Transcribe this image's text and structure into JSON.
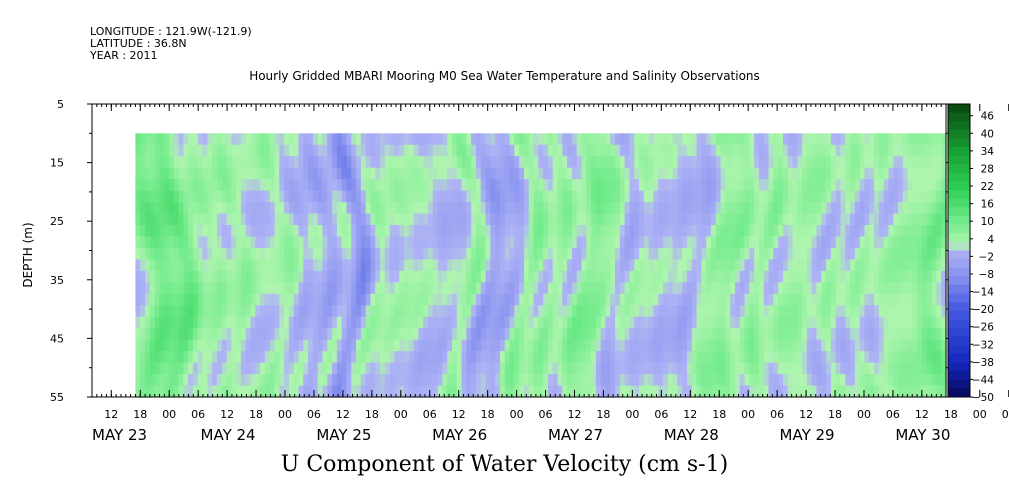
{
  "header": {
    "longitude": "LONGITUDE : 121.9W(-121.9)",
    "latitude": "LATITUDE : 36.8N",
    "year": "YEAR : 2011"
  },
  "title": "Hourly Gridded MBARI Mooring M0 Sea Water Temperature and Salinity Observations",
  "chart_data": {
    "type": "heatmap",
    "title": "Hourly Gridded MBARI Mooring M0 Sea Water Temperature and Salinity Observations",
    "xlabel": "",
    "ylabel": "DEPTH (m)",
    "variable_label": "U Component of Water Velocity (cm s-1)",
    "y_axis": {
      "ticks": [
        5,
        15,
        25,
        35,
        45,
        55
      ],
      "range": [
        5,
        55
      ],
      "inverted": true
    },
    "x_axis": {
      "hour_ticks": [
        "12",
        "18",
        "00",
        "06",
        "12",
        "18",
        "00",
        "06",
        "12",
        "18",
        "00",
        "06",
        "12",
        "18",
        "00",
        "06",
        "12",
        "18",
        "00",
        "06",
        "12",
        "18",
        "00",
        "06",
        "12",
        "18",
        "00",
        "06",
        "12",
        "18",
        "00",
        "06"
      ],
      "day_labels": [
        "MAY 23",
        "MAY 24",
        "MAY 25",
        "MAY 26",
        "MAY 27",
        "MAY 28",
        "MAY 29",
        "MAY 30"
      ],
      "range": [
        "2011-05-23T08:00",
        "2011-05-30T17:00"
      ]
    },
    "data_extent": {
      "time_start": "2011-05-23T17:00",
      "time_end": "2011-05-30T17:00",
      "depth_min": 10,
      "depth_max": 55
    },
    "colorbar": {
      "labels": [
        46,
        40,
        34,
        28,
        22,
        16,
        10,
        4,
        -2,
        -8,
        -14,
        -20,
        -26,
        -32,
        -38,
        -44,
        -50
      ],
      "range": [
        -50,
        50
      ]
    },
    "features": [
      {
        "start_hour": 13,
        "sign": 1,
        "amplitude": 14
      },
      {
        "start_hour": 24,
        "sign": -1,
        "amplitude": 8
      },
      {
        "start_hour": 32,
        "sign": 1,
        "amplitude": 18
      },
      {
        "start_hour": 48,
        "sign": -1,
        "amplitude": 9
      },
      {
        "start_hour": 56,
        "sign": 1,
        "amplitude": 16
      },
      {
        "start_hour": 66,
        "sign": -1,
        "amplitude": 12
      },
      {
        "start_hour": 76,
        "sign": 1,
        "amplitude": 14
      },
      {
        "start_hour": 88,
        "sign": -1,
        "amplitude": 10
      },
      {
        "start_hour": 96,
        "sign": 1,
        "amplitude": 12
      },
      {
        "start_hour": 104,
        "sign": -1,
        "amplitude": 13
      },
      {
        "start_hour": 113,
        "sign": 1,
        "amplitude": 17
      },
      {
        "start_hour": 124,
        "sign": -1,
        "amplitude": 15
      },
      {
        "start_hour": 134,
        "sign": 1,
        "amplitude": 13
      },
      {
        "start_hour": 146,
        "sign": -1,
        "amplitude": 16
      },
      {
        "start_hour": 156,
        "sign": 1,
        "amplitude": 14
      },
      {
        "start_hour": 170,
        "sign": -1,
        "amplitude": 18
      },
      {
        "start_hour": 182,
        "sign": 1,
        "amplitude": 14
      },
      {
        "start_hour": 194,
        "sign": -1,
        "amplitude": 12
      },
      {
        "start_hour": 202,
        "sign": 1,
        "amplitude": 13
      },
      {
        "start_hour": 214,
        "sign": -1,
        "amplitude": 10
      },
      {
        "start_hour": 222,
        "sign": 1,
        "amplitude": 14
      },
      {
        "start_hour": 232,
        "sign": -1,
        "amplitude": 14
      },
      {
        "start_hour": 240,
        "sign": 1,
        "amplitude": 12
      },
      {
        "start_hour": 250,
        "sign": -1,
        "amplitude": 11
      },
      {
        "start_hour": 262,
        "sign": 1,
        "amplitude": 16
      },
      {
        "start_hour": 274,
        "sign": -1,
        "amplitude": 18
      },
      {
        "start_hour": 284,
        "sign": 1,
        "amplitude": 14
      },
      {
        "start_hour": 294,
        "sign": -1,
        "amplitude": 16
      },
      {
        "start_hour": 306,
        "sign": 1,
        "amplitude": 15
      },
      {
        "start_hour": 320,
        "sign": -1,
        "amplitude": 10
      },
      {
        "start_hour": 330,
        "sign": 1,
        "amplitude": 16
      },
      {
        "start_hour": 342,
        "sign": -1,
        "amplitude": 14
      },
      {
        "start_hour": 352,
        "sign": 1,
        "amplitude": 18
      },
      {
        "start_hour": 362,
        "sign": -1,
        "amplitude": 10
      },
      {
        "start_hour": 370,
        "sign": 1,
        "amplitude": 15
      },
      {
        "start_hour": 382,
        "sign": -1,
        "amplitude": 12
      },
      {
        "start_hour": 394,
        "sign": 1,
        "amplitude": 12
      },
      {
        "start_hour": 404,
        "sign": -1,
        "amplitude": 11
      },
      {
        "start_hour": 414,
        "sign": 1,
        "amplitude": 12
      },
      {
        "start_hour": 424,
        "sign": -1,
        "amplitude": 15
      },
      {
        "start_hour": 432,
        "sign": 1,
        "amplitude": 14
      },
      {
        "start_hour": 442,
        "sign": -1,
        "amplitude": 12
      },
      {
        "start_hour": 456,
        "sign": 1,
        "amplitude": 13
      },
      {
        "start_hour": 464,
        "sign": -1,
        "amplitude": 9
      },
      {
        "start_hour": 474,
        "sign": 1,
        "amplitude": 14
      },
      {
        "start_hour": 486,
        "sign": -1,
        "amplitude": 12
      },
      {
        "start_hour": 496,
        "sign": 1,
        "amplitude": 15
      },
      {
        "start_hour": 510,
        "sign": -1,
        "amplitude": 12
      },
      {
        "start_hour": 518,
        "sign": 1,
        "amplitude": 16
      },
      {
        "start_hour": 526,
        "sign": -1,
        "amplitude": 11
      },
      {
        "start_hour": 534,
        "sign": 1,
        "amplitude": 13
      },
      {
        "start_hour": 546,
        "sign": -1,
        "amplitude": 12
      },
      {
        "start_hour": 556,
        "sign": 1,
        "amplitude": 14
      },
      {
        "start_hour": 568,
        "sign": -1,
        "amplitude": 12
      },
      {
        "start_hour": 578,
        "sign": 1,
        "amplitude": 13
      },
      {
        "start_hour": 590,
        "sign": -1,
        "amplitude": 10
      },
      {
        "start_hour": 600,
        "sign": 1,
        "amplitude": 12
      },
      {
        "start_hour": 608,
        "sign": -1,
        "amplitude": 9
      },
      {
        "start_hour": 616,
        "sign": 1,
        "amplitude": 14
      },
      {
        "start_hour": 624,
        "sign": -1,
        "amplitude": 12
      },
      {
        "start_hour": 632,
        "sign": 1,
        "amplitude": 15
      }
    ]
  }
}
